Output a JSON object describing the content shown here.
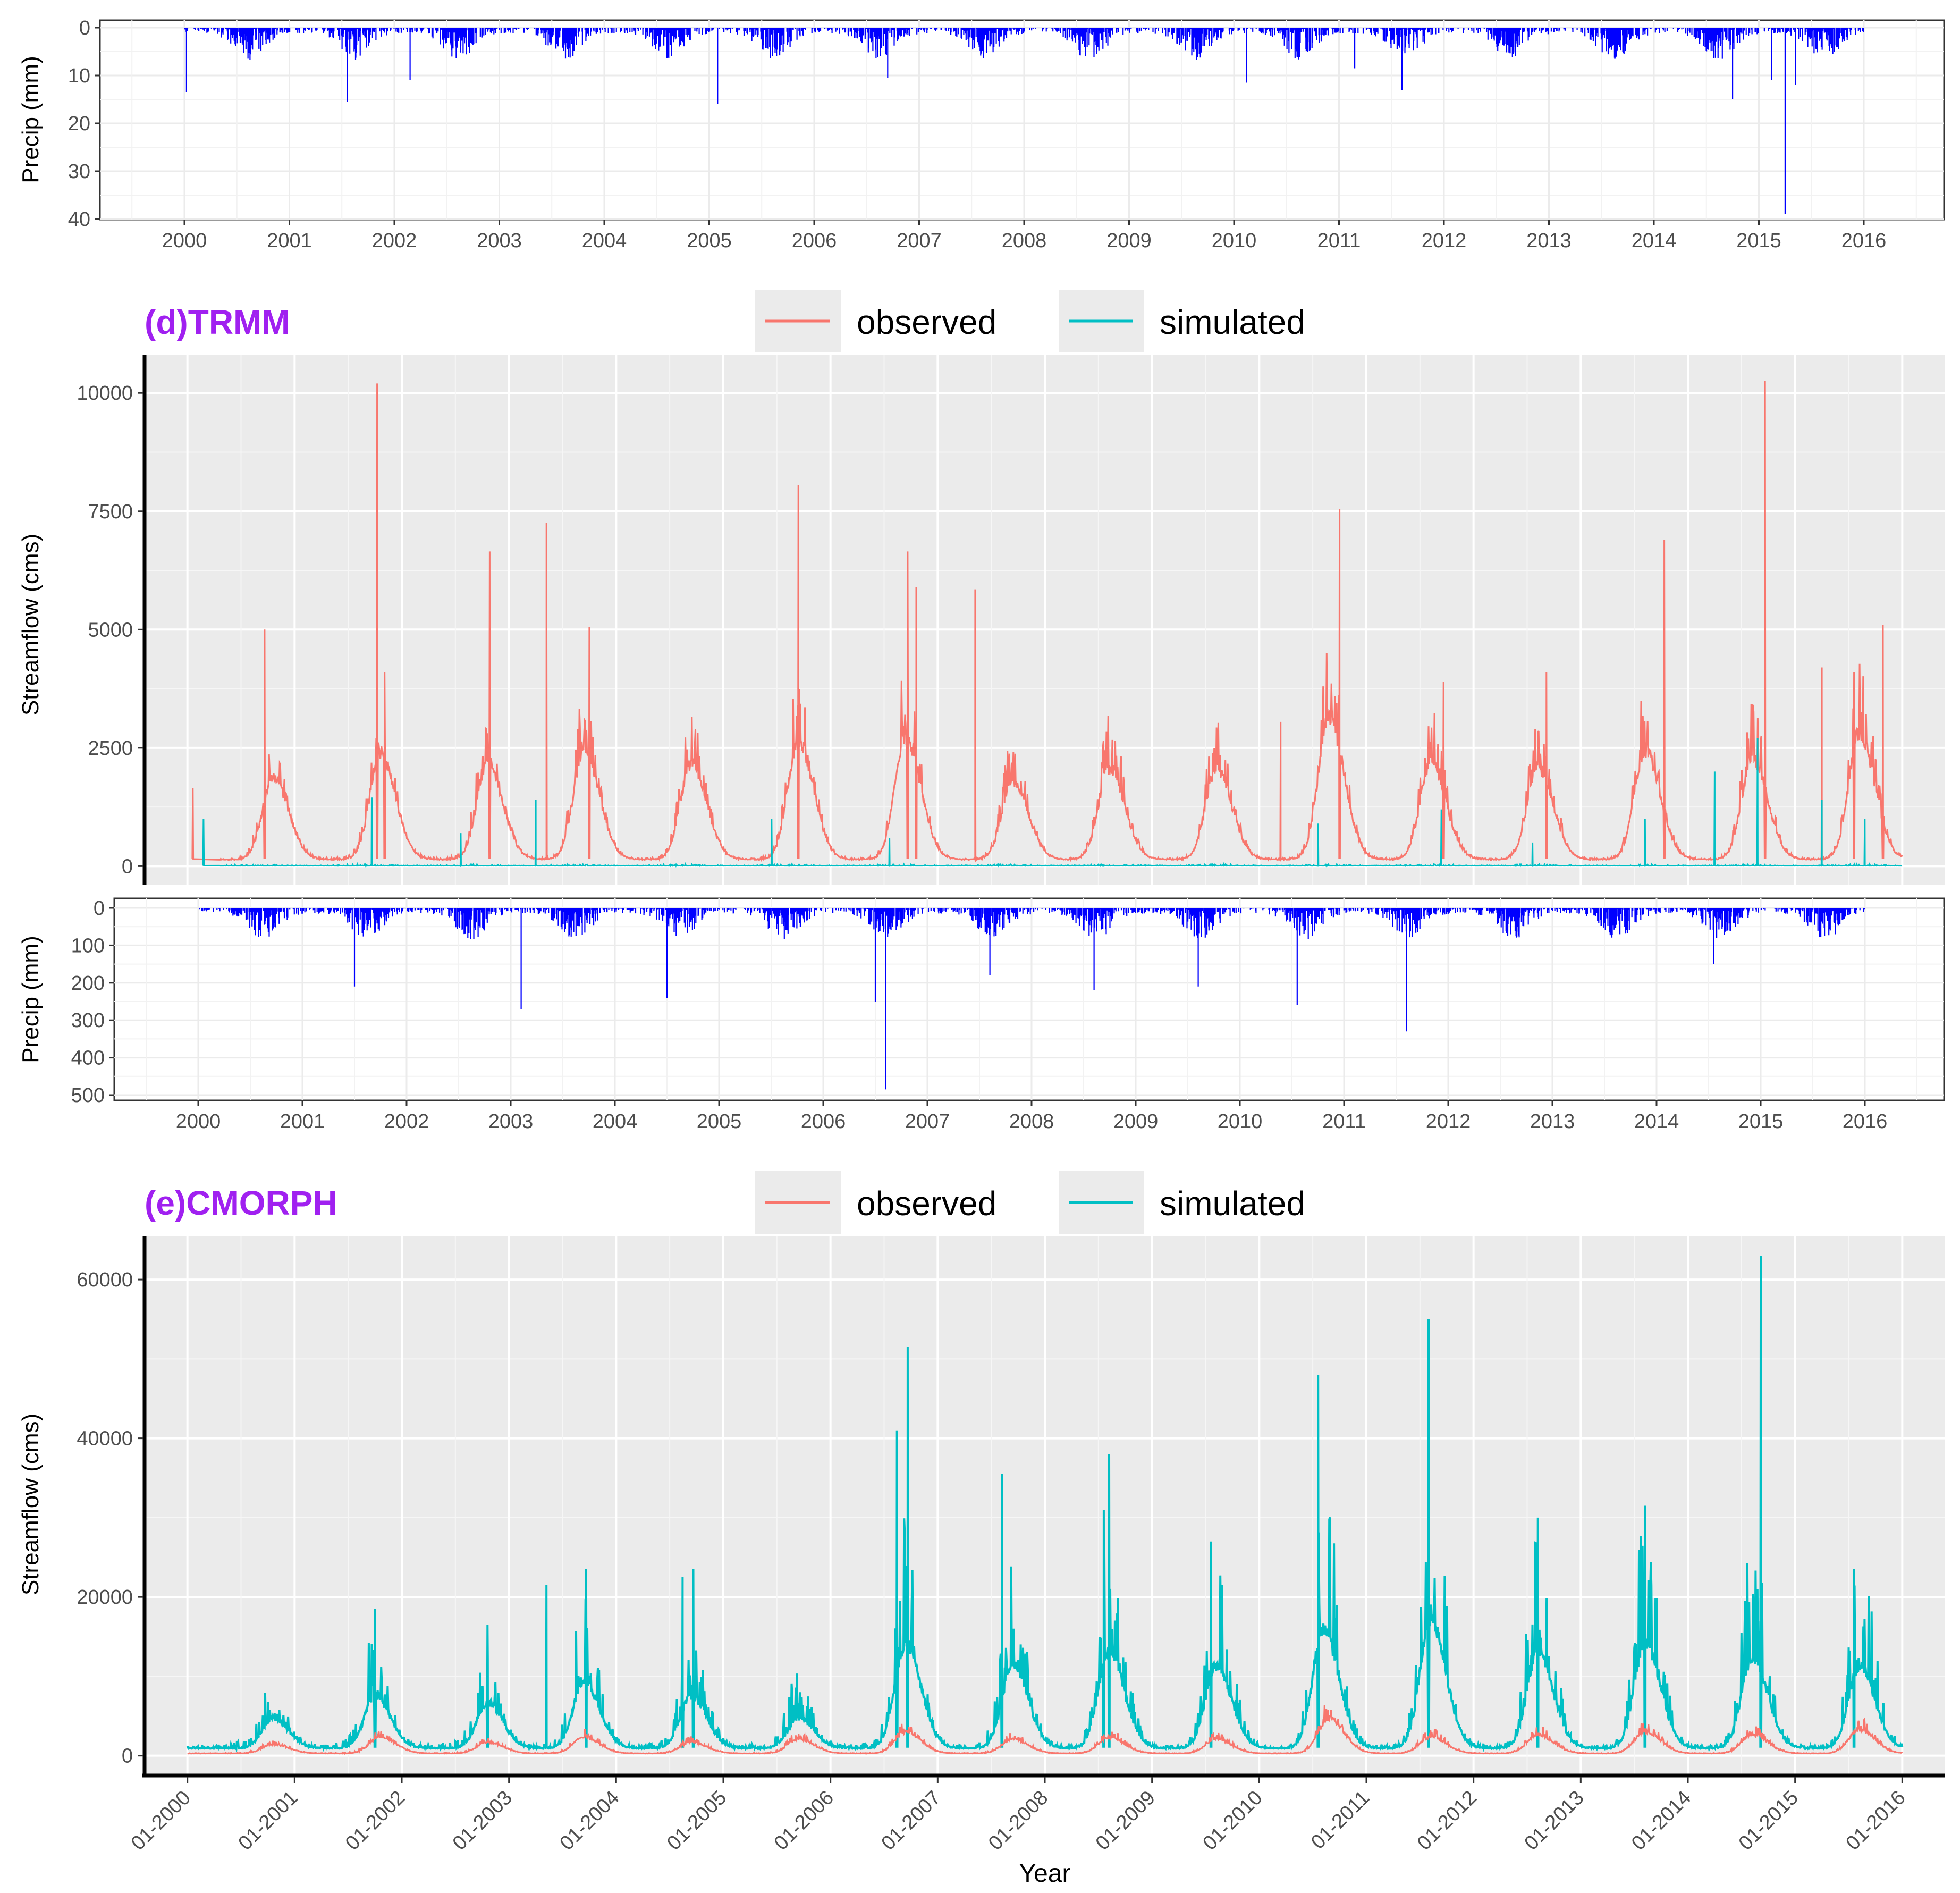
{
  "chart_data": [
    {
      "id": "precip-top",
      "type": "bar",
      "ylabel": "Precip (mm)",
      "ylim": [
        40,
        0
      ],
      "y_ticks": [
        "0",
        "10",
        "20",
        "30",
        "40"
      ],
      "x_ticks": [
        "2000",
        "2001",
        "2002",
        "2003",
        "2004",
        "2005",
        "2006",
        "2007",
        "2008",
        "2009",
        "2010",
        "2011",
        "2012",
        "2013",
        "2014",
        "2015",
        "2016"
      ],
      "xlim": [
        2000,
        2016
      ],
      "color": "#0000ff",
      "grid": true,
      "peaks": [
        {
          "x": 2000.02,
          "y": 13.5
        },
        {
          "x": 2001.55,
          "y": 15.5
        },
        {
          "x": 2002.15,
          "y": 11
        },
        {
          "x": 2005.08,
          "y": 16
        },
        {
          "x": 2006.7,
          "y": 10.5
        },
        {
          "x": 2010.12,
          "y": 11.5
        },
        {
          "x": 2011.15,
          "y": 8.5
        },
        {
          "x": 2011.6,
          "y": 13
        },
        {
          "x": 2014.75,
          "y": 15
        },
        {
          "x": 2015.12,
          "y": 11
        },
        {
          "x": 2015.25,
          "y": 39
        },
        {
          "x": 2015.35,
          "y": 12
        }
      ]
    },
    {
      "id": "trmm-flow",
      "type": "line",
      "title": "(d)TRMM",
      "ylabel": "Streamflow (cms)",
      "ylim": [
        -400,
        10800
      ],
      "y_ticks": [
        "0",
        "2500",
        "5000",
        "7500",
        "10000"
      ],
      "y_tick_values": [
        0,
        2500,
        5000,
        7500,
        10000
      ],
      "xlim": [
        1999.6,
        2016.4
      ],
      "x_gridlines": [
        2000,
        2001,
        2002,
        2003,
        2004,
        2005,
        2006,
        2007,
        2008,
        2009,
        2010,
        2011,
        2012,
        2013,
        2014,
        2015,
        2016
      ],
      "legend_position": "top",
      "series": [
        {
          "name": "observed",
          "color": "#f8766d",
          "baseflow": 150,
          "wet_season_peaks": [
            {
              "x": 2000.8,
              "y": 2000
            },
            {
              "x": 2001.8,
              "y": 2500
            },
            {
              "x": 2002.8,
              "y": 2300
            },
            {
              "x": 2003.7,
              "y": 2600
            },
            {
              "x": 2004.7,
              "y": 2300
            },
            {
              "x": 2005.7,
              "y": 2800
            },
            {
              "x": 2006.7,
              "y": 2900
            },
            {
              "x": 2007.7,
              "y": 1900
            },
            {
              "x": 2008.6,
              "y": 2200
            },
            {
              "x": 2009.6,
              "y": 2200
            },
            {
              "x": 2010.65,
              "y": 3300
            },
            {
              "x": 2011.6,
              "y": 2300
            },
            {
              "x": 2012.6,
              "y": 2200
            },
            {
              "x": 2013.6,
              "y": 2600
            },
            {
              "x": 2014.6,
              "y": 2400
            },
            {
              "x": 2015.6,
              "y": 3000
            }
          ],
          "spikes": [
            {
              "x": 2000.05,
              "y": 1650
            },
            {
              "x": 2000.72,
              "y": 5000
            },
            {
              "x": 2001.77,
              "y": 10200
            },
            {
              "x": 2001.84,
              "y": 4100
            },
            {
              "x": 2002.82,
              "y": 6650
            },
            {
              "x": 2003.35,
              "y": 7250
            },
            {
              "x": 2003.75,
              "y": 5050
            },
            {
              "x": 2005.7,
              "y": 8050
            },
            {
              "x": 2006.72,
              "y": 6650
            },
            {
              "x": 2006.8,
              "y": 5900
            },
            {
              "x": 2007.35,
              "y": 5850
            },
            {
              "x": 2010.2,
              "y": 3050
            },
            {
              "x": 2010.75,
              "y": 7550
            },
            {
              "x": 2011.72,
              "y": 3900
            },
            {
              "x": 2012.68,
              "y": 4100
            },
            {
              "x": 2013.78,
              "y": 6900
            },
            {
              "x": 2014.72,
              "y": 10250
            },
            {
              "x": 2015.25,
              "y": 4200
            },
            {
              "x": 2015.55,
              "y": 4100
            },
            {
              "x": 2015.82,
              "y": 5100
            }
          ]
        },
        {
          "name": "simulated",
          "color": "#00bfc4",
          "baseflow": 10,
          "spikes": [
            {
              "x": 2000.15,
              "y": 1000
            },
            {
              "x": 2001.72,
              "y": 1450
            },
            {
              "x": 2002.55,
              "y": 700
            },
            {
              "x": 2003.25,
              "y": 1400
            },
            {
              "x": 2005.45,
              "y": 1000
            },
            {
              "x": 2006.55,
              "y": 600
            },
            {
              "x": 2010.55,
              "y": 900
            },
            {
              "x": 2011.7,
              "y": 1200
            },
            {
              "x": 2012.55,
              "y": 500
            },
            {
              "x": 2013.6,
              "y": 1000
            },
            {
              "x": 2014.25,
              "y": 2000
            },
            {
              "x": 2014.65,
              "y": 2700
            },
            {
              "x": 2015.25,
              "y": 1400
            },
            {
              "x": 2015.65,
              "y": 1000
            }
          ]
        }
      ]
    },
    {
      "id": "precip-middle",
      "type": "bar",
      "ylabel": "Precip (mm)",
      "ylim": [
        500,
        0
      ],
      "y_ticks": [
        "0",
        "100",
        "200",
        "300",
        "400",
        "500"
      ],
      "x_ticks": [
        "2000",
        "2001",
        "2002",
        "2003",
        "2004",
        "2005",
        "2006",
        "2007",
        "2008",
        "2009",
        "2010",
        "2011",
        "2012",
        "2013",
        "2014",
        "2015",
        "2016"
      ],
      "xlim": [
        2000,
        2016
      ],
      "color": "#0000ff",
      "grid": true,
      "peaks": [
        {
          "x": 2001.5,
          "y": 210
        },
        {
          "x": 2003.1,
          "y": 270
        },
        {
          "x": 2004.5,
          "y": 240
        },
        {
          "x": 2006.5,
          "y": 250
        },
        {
          "x": 2006.6,
          "y": 485
        },
        {
          "x": 2007.6,
          "y": 180
        },
        {
          "x": 2008.6,
          "y": 220
        },
        {
          "x": 2009.6,
          "y": 210
        },
        {
          "x": 2010.55,
          "y": 260
        },
        {
          "x": 2011.6,
          "y": 330
        },
        {
          "x": 2014.55,
          "y": 150
        }
      ]
    },
    {
      "id": "cmorph-flow",
      "type": "line",
      "title": "(e)CMORPH",
      "ylabel": "Streamflow (cms)",
      "xlabel": "Year",
      "ylim": [
        -2500,
        65500
      ],
      "y_ticks": [
        "0",
        "20000",
        "40000",
        "60000"
      ],
      "y_tick_values": [
        0,
        20000,
        40000,
        60000
      ],
      "xlim": [
        1999.6,
        2016.4
      ],
      "x_ticks": [
        "01-2000",
        "01-2001",
        "01-2002",
        "01-2003",
        "01-2004",
        "01-2005",
        "01-2006",
        "01-2007",
        "01-2008",
        "01-2009",
        "01-2010",
        "01-2011",
        "01-2012",
        "01-2013",
        "01-2014",
        "01-2015",
        "01-2016"
      ],
      "legend_position": "top",
      "series": [
        {
          "name": "observed",
          "color": "#f8766d",
          "baseflow": 300,
          "wet_season_peaks": [
            {
              "x": 2000.8,
              "y": 1500
            },
            {
              "x": 2001.8,
              "y": 2500
            },
            {
              "x": 2002.8,
              "y": 1800
            },
            {
              "x": 2003.7,
              "y": 2500
            },
            {
              "x": 2004.7,
              "y": 1800
            },
            {
              "x": 2005.7,
              "y": 2200
            },
            {
              "x": 2006.7,
              "y": 3200
            },
            {
              "x": 2007.7,
              "y": 2200
            },
            {
              "x": 2008.6,
              "y": 2400
            },
            {
              "x": 2009.6,
              "y": 2200
            },
            {
              "x": 2010.65,
              "y": 5000
            },
            {
              "x": 2011.6,
              "y": 2500
            },
            {
              "x": 2012.6,
              "y": 2800
            },
            {
              "x": 2013.6,
              "y": 3200
            },
            {
              "x": 2014.6,
              "y": 2800
            },
            {
              "x": 2015.6,
              "y": 3500
            }
          ]
        },
        {
          "name": "simulated",
          "color": "#00bfc4",
          "baseflow": 1000,
          "wet_season_peaks": [
            {
              "x": 2000.8,
              "y": 5000
            },
            {
              "x": 2001.75,
              "y": 8000
            },
            {
              "x": 2002.8,
              "y": 7000
            },
            {
              "x": 2003.7,
              "y": 10000
            },
            {
              "x": 2004.7,
              "y": 8000
            },
            {
              "x": 2005.7,
              "y": 5000
            },
            {
              "x": 2006.7,
              "y": 15000
            },
            {
              "x": 2007.7,
              "y": 12000
            },
            {
              "x": 2008.6,
              "y": 14000
            },
            {
              "x": 2009.6,
              "y": 12000
            },
            {
              "x": 2010.6,
              "y": 17000
            },
            {
              "x": 2011.6,
              "y": 18000
            },
            {
              "x": 2012.6,
              "y": 14000
            },
            {
              "x": 2013.6,
              "y": 15000
            },
            {
              "x": 2014.6,
              "y": 13000
            },
            {
              "x": 2015.6,
              "y": 12000
            }
          ],
          "spikes": [
            {
              "x": 2001.75,
              "y": 18500
            },
            {
              "x": 2002.8,
              "y": 16500
            },
            {
              "x": 2003.35,
              "y": 21500
            },
            {
              "x": 2003.72,
              "y": 23500
            },
            {
              "x": 2004.62,
              "y": 22500
            },
            {
              "x": 2004.72,
              "y": 23500
            },
            {
              "x": 2006.62,
              "y": 41000
            },
            {
              "x": 2006.72,
              "y": 51500
            },
            {
              "x": 2007.6,
              "y": 35500
            },
            {
              "x": 2008.55,
              "y": 31000
            },
            {
              "x": 2008.6,
              "y": 38000
            },
            {
              "x": 2009.55,
              "y": 27000
            },
            {
              "x": 2010.55,
              "y": 48000
            },
            {
              "x": 2011.58,
              "y": 55000
            },
            {
              "x": 2012.6,
              "y": 30000
            },
            {
              "x": 2013.6,
              "y": 31500
            },
            {
              "x": 2014.68,
              "y": 63000
            },
            {
              "x": 2015.55,
              "y": 23500
            }
          ]
        }
      ]
    }
  ]
}
